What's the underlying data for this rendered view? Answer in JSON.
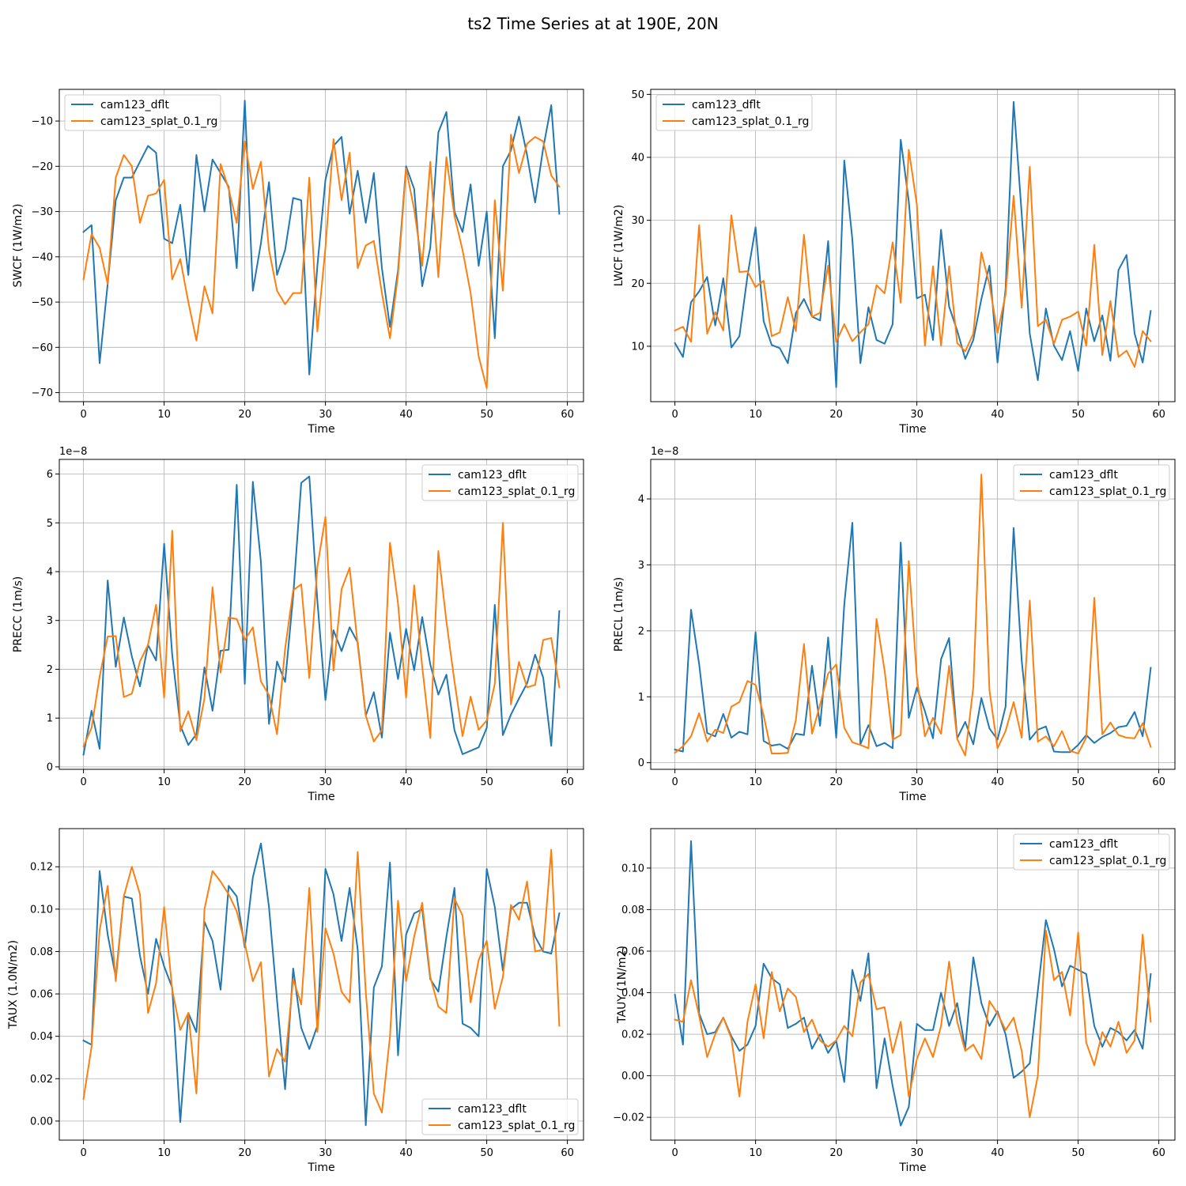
{
  "suptitle": "ts2 Time Series at at 190E, 20N",
  "colors": {
    "dflt": "#1f77b4",
    "splat": "#ff7f0e",
    "grid": "#b0b0b0"
  },
  "chart_data": [
    {
      "type": "line",
      "ylabel": "SWCF (1W/m2)",
      "xlabel": "Time",
      "xlim": [
        -3,
        62
      ],
      "ylim": [
        -72,
        -3
      ],
      "xticks": [
        0,
        10,
        20,
        30,
        40,
        50,
        60
      ],
      "yticks": [
        -70,
        -60,
        -50,
        -40,
        -30,
        -20,
        -10
      ],
      "ytick_labels": [
        "−70",
        "−60",
        "−50",
        "−40",
        "−30",
        "−20",
        "−10"
      ],
      "offset": "",
      "legend_loc": "upper-left",
      "series": [
        {
          "name": "cam123_dflt",
          "color_key": "dflt",
          "values": [
            -34.5,
            -33,
            -63.5,
            -46,
            -27.5,
            -22.5,
            -22.5,
            -19,
            -15.5,
            -17,
            -36,
            -37,
            -28.5,
            -44,
            -17.5,
            -30,
            -18.5,
            -21.5,
            -24.5,
            -42.5,
            -5.5,
            -47.5,
            -37,
            -23.5,
            -44,
            -38.5,
            -27,
            -27.5,
            -66,
            -42,
            -23,
            -15.5,
            -13.5,
            -30.5,
            -21,
            -32.5,
            -21.5,
            -42.5,
            -55.5,
            -43,
            -20,
            -25,
            -46.5,
            -38,
            -12.5,
            -8,
            -30,
            -34.5,
            -24,
            -42,
            -30,
            -58,
            -20,
            -16.5,
            -9,
            -17.5,
            -28,
            -16,
            -6.5,
            -30.5
          ]
        },
        {
          "name": "cam123_splat_0.1_rg",
          "color_key": "splat",
          "values": [
            -45,
            -35,
            -38,
            -46,
            -22.5,
            -17.5,
            -20,
            -32.5,
            -26.5,
            -26,
            -23,
            -45,
            -40.5,
            -50,
            -58.5,
            -46.5,
            -52.5,
            -19.5,
            -25,
            -32.5,
            -14.5,
            -25,
            -19,
            -38.5,
            -47.5,
            -50.5,
            -48,
            -48,
            -22.5,
            -56.5,
            -38,
            -14,
            -27.5,
            -17,
            -42.5,
            -37.5,
            -36.5,
            -48,
            -58,
            -44,
            -20.5,
            -29.5,
            -42,
            -19,
            -44.5,
            -18,
            -31,
            -38.5,
            -48,
            -62,
            -69,
            -27.5,
            -47.5,
            -13,
            -21.5,
            -15,
            -13.5,
            -14.5,
            -22,
            -24.5
          ]
        }
      ]
    },
    {
      "type": "line",
      "ylabel": "LWCF (1W/m2)",
      "xlabel": "Time",
      "xlim": [
        -3,
        62
      ],
      "ylim": [
        1.2,
        50.8
      ],
      "xticks": [
        0,
        10,
        20,
        30,
        40,
        50,
        60
      ],
      "yticks": [
        10,
        20,
        30,
        40,
        50
      ],
      "ytick_labels": [
        "10",
        "20",
        "30",
        "40",
        "50"
      ],
      "offset": "",
      "legend_loc": "upper-left",
      "series": [
        {
          "name": "cam123_dflt",
          "color_key": "dflt",
          "values": [
            10.5,
            8.3,
            17,
            18.7,
            21,
            13.3,
            20.8,
            9.8,
            11.6,
            21.2,
            28.9,
            14,
            10.2,
            9.7,
            7.3,
            15.3,
            17.5,
            14.7,
            14.1,
            26.7,
            3.5,
            39.5,
            27,
            7.3,
            16.2,
            11,
            10.4,
            13.5,
            42.8,
            33,
            17.6,
            18.2,
            11,
            28.5,
            16.3,
            12.5,
            8,
            11,
            17.5,
            22.8,
            7.4,
            19.1,
            48.8,
            31,
            12,
            4.6,
            16,
            10.1,
            7.8,
            12.4,
            6.1,
            16,
            10.8,
            14.9,
            7.7,
            22.1,
            24.5,
            12,
            7.4,
            15.6
          ]
        },
        {
          "name": "cam123_splat_0.1_rg",
          "color_key": "splat",
          "values": [
            12.5,
            13.1,
            10.7,
            29.2,
            12,
            15.4,
            12.5,
            30.8,
            21.8,
            21.9,
            19.4,
            20.4,
            11.6,
            12.2,
            17.8,
            12.4,
            27.7,
            14.7,
            15.3,
            22.8,
            10.7,
            13.5,
            10.8,
            12.2,
            13.5,
            19.7,
            18.4,
            26.5,
            16.9,
            41.2,
            32.5,
            10.1,
            22.7,
            10.1,
            22.7,
            10.5,
            9.2,
            12,
            24.9,
            19.8,
            12.1,
            18.2,
            33.9,
            16.1,
            38.5,
            13.2,
            14.2,
            10.4,
            14.2,
            14.7,
            15.5,
            10.1,
            26.1,
            8.6,
            17.2,
            8.3,
            9.3,
            6.7,
            12.4,
            10.8
          ]
        }
      ]
    },
    {
      "type": "line",
      "ylabel": "PRECC (1m/s)",
      "xlabel": "Time",
      "xlim": [
        -3,
        62
      ],
      "ylim": [
        -0.05,
        6.3
      ],
      "xticks": [
        0,
        10,
        20,
        30,
        40,
        50,
        60
      ],
      "yticks": [
        0,
        1,
        2,
        3,
        4,
        5,
        6
      ],
      "ytick_labels": [
        "0",
        "1",
        "2",
        "3",
        "4",
        "5",
        "6"
      ],
      "offset": "1e−8",
      "legend_loc": "upper-right",
      "series": [
        {
          "name": "cam123_dflt",
          "color_key": "dflt",
          "values": [
            0.25,
            1.15,
            0.37,
            3.82,
            2.05,
            3.06,
            2.26,
            1.65,
            2.5,
            2.18,
            4.57,
            2.3,
            0.85,
            0.45,
            0.67,
            2.04,
            1.15,
            2.38,
            2.4,
            5.78,
            1.7,
            5.84,
            4.2,
            0.88,
            2.16,
            1.74,
            3.5,
            5.82,
            5.95,
            3.4,
            1.37,
            2.8,
            2.37,
            2.86,
            2.55,
            1.05,
            1.53,
            0.6,
            2.75,
            1.8,
            2.83,
            1.98,
            3.07,
            2.1,
            1.48,
            1.89,
            0.75,
            0.26,
            0.33,
            0.4,
            0.8,
            3.32,
            0.65,
            1.07,
            1.4,
            1.71,
            2.3,
            1.83,
            0.43,
            3.19
          ]
        },
        {
          "name": "cam123_splat_0.1_rg",
          "color_key": "splat",
          "values": [
            0.42,
            0.8,
            1.85,
            2.67,
            2.68,
            1.43,
            1.5,
            2.16,
            2.5,
            3.32,
            1.42,
            4.84,
            0.73,
            1.14,
            0.55,
            1.4,
            3.68,
            1.93,
            3.06,
            3.03,
            2.6,
            2.86,
            1.75,
            1.47,
            0.67,
            2.42,
            3.62,
            3.74,
            1.82,
            4.1,
            5.12,
            1.97,
            3.64,
            4.08,
            2.5,
            1.05,
            0.52,
            0.75,
            4.59,
            3.35,
            1.42,
            3.72,
            2.05,
            0.59,
            4.42,
            2.98,
            1.75,
            0.63,
            1.44,
            0.76,
            0.95,
            1.7,
            5,
            1.28,
            2.15,
            1.63,
            1.68,
            2.6,
            2.64,
            1.63
          ]
        }
      ]
    },
    {
      "type": "line",
      "ylabel": "PRECL (1m/s)",
      "xlabel": "Time",
      "xlim": [
        -3,
        62
      ],
      "ylim": [
        -0.1,
        4.6
      ],
      "xticks": [
        0,
        10,
        20,
        30,
        40,
        50,
        60
      ],
      "yticks": [
        0,
        1,
        2,
        3,
        4
      ],
      "ytick_labels": [
        "0",
        "1",
        "2",
        "3",
        "4"
      ],
      "offset": "1e−8",
      "legend_loc": "upper-right",
      "series": [
        {
          "name": "cam123_dflt",
          "color_key": "dflt",
          "values": [
            0.2,
            0.17,
            2.32,
            1.5,
            0.45,
            0.4,
            0.74,
            0.38,
            0.47,
            0.43,
            1.98,
            0.33,
            0.26,
            0.28,
            0.21,
            0.44,
            0.42,
            1.47,
            0.56,
            1.9,
            0.38,
            2.4,
            3.64,
            0.28,
            0.57,
            0.25,
            0.3,
            0.22,
            3.34,
            0.68,
            1.14,
            0.78,
            0.37,
            1.57,
            1.89,
            0.37,
            0.62,
            0.28,
            0.98,
            0.52,
            0.35,
            0.85,
            3.56,
            1.55,
            0.35,
            0.5,
            0.55,
            0.17,
            0.16,
            0.16,
            0.27,
            0.42,
            0.3,
            0.39,
            0.45,
            0.54,
            0.56,
            0.77,
            0.4,
            1.44
          ]
        },
        {
          "name": "cam123_splat_0.1_rg",
          "color_key": "splat",
          "values": [
            0.15,
            0.25,
            0.4,
            0.75,
            0.32,
            0.5,
            0.45,
            0.85,
            0.92,
            1.24,
            1.18,
            0.72,
            0.14,
            0.14,
            0.15,
            0.65,
            1.8,
            0.44,
            0.88,
            1.35,
            1.49,
            0.53,
            0.31,
            0.27,
            0.22,
            2.18,
            1.4,
            0.35,
            0.42,
            3.06,
            1.3,
            0.4,
            0.68,
            0.44,
            1.47,
            0.36,
            0.11,
            1.15,
            4.37,
            1.1,
            0.22,
            0.48,
            0.92,
            0.38,
            2.46,
            0.32,
            0.4,
            0.25,
            0.48,
            0.18,
            0.14,
            0.38,
            2.5,
            0.43,
            0.61,
            0.42,
            0.38,
            0.37,
            0.6,
            0.24
          ]
        }
      ]
    },
    {
      "type": "line",
      "ylabel": "TAUX (1.0N/m2)",
      "xlabel": "Time",
      "xlim": [
        -3,
        62
      ],
      "ylim": [
        -0.009,
        0.138
      ],
      "xticks": [
        0,
        10,
        20,
        30,
        40,
        50,
        60
      ],
      "yticks": [
        0,
        0.02,
        0.04,
        0.06,
        0.08,
        0.1,
        0.12
      ],
      "ytick_labels": [
        "0.00",
        "0.02",
        "0.04",
        "0.06",
        "0.08",
        "0.10",
        "0.12"
      ],
      "offset": "",
      "legend_loc": "lower-right",
      "series": [
        {
          "name": "cam123_dflt",
          "color_key": "dflt",
          "values": [
            0.038,
            0.036,
            0.118,
            0.088,
            0.068,
            0.106,
            0.105,
            0.078,
            0.06,
            0.086,
            0.073,
            0.063,
            -0.0005,
            0.051,
            0.042,
            0.094,
            0.085,
            0.062,
            0.111,
            0.106,
            0.082,
            0.115,
            0.131,
            0.101,
            0.057,
            0.015,
            0.072,
            0.044,
            0.034,
            0.045,
            0.119,
            0.107,
            0.085,
            0.11,
            0.081,
            -0.002,
            0.063,
            0.073,
            0.122,
            0.031,
            0.088,
            0.098,
            0.1,
            0.067,
            0.061,
            0.087,
            0.11,
            0.046,
            0.044,
            0.04,
            0.119,
            0.101,
            0.071,
            0.1,
            0.103,
            0.103,
            0.087,
            0.08,
            0.079,
            0.098
          ]
        },
        {
          "name": "cam123_splat_0.1_rg",
          "color_key": "splat",
          "values": [
            0.0105,
            0.035,
            0.09,
            0.111,
            0.066,
            0.106,
            0.12,
            0.107,
            0.051,
            0.065,
            0.101,
            0.062,
            0.043,
            0.051,
            0.013,
            0.1,
            0.118,
            0.113,
            0.107,
            0.099,
            0.084,
            0.066,
            0.075,
            0.021,
            0.034,
            0.028,
            0.067,
            0.055,
            0.11,
            0.042,
            0.091,
            0.079,
            0.061,
            0.056,
            0.127,
            0.061,
            0.013,
            0.004,
            0.04,
            0.104,
            0.066,
            0.087,
            0.103,
            0.068,
            0.054,
            0.051,
            0.105,
            0.097,
            0.056,
            0.076,
            0.085,
            0.053,
            0.068,
            0.102,
            0.095,
            0.113,
            0.08,
            0.081,
            0.128,
            0.045
          ]
        }
      ]
    },
    {
      "type": "line",
      "ylabel": "TAUY (1N/m2)",
      "xlabel": "Time",
      "xlim": [
        -3,
        62
      ],
      "ylim": [
        -0.031,
        0.119
      ],
      "xticks": [
        0,
        10,
        20,
        30,
        40,
        50,
        60
      ],
      "yticks": [
        -0.02,
        0,
        0.02,
        0.04,
        0.06,
        0.08,
        0.1
      ],
      "ytick_labels": [
        "−0.02",
        "0.00",
        "0.02",
        "0.04",
        "0.06",
        "0.08",
        "0.10"
      ],
      "offset": "",
      "legend_loc": "upper-right",
      "series": [
        {
          "name": "cam123_dflt",
          "color_key": "dflt",
          "values": [
            0.039,
            0.015,
            0.113,
            0.03,
            0.02,
            0.021,
            0.028,
            0.019,
            0.012,
            0.015,
            0.024,
            0.054,
            0.047,
            0.044,
            0.023,
            0.025,
            0.028,
            0.013,
            0.02,
            0.011,
            0.017,
            -0.003,
            0.051,
            0.036,
            0.059,
            -0.006,
            0.018,
            -0.005,
            -0.024,
            -0.015,
            0.025,
            0.022,
            0.022,
            0.04,
            0.024,
            0.035,
            0.013,
            0.057,
            0.035,
            0.024,
            0.031,
            0.02,
            -0.001,
            0.002,
            0.006,
            0.041,
            0.075,
            0.061,
            0.043,
            0.053,
            0.051,
            0.049,
            0.024,
            0.014,
            0.023,
            0.021,
            0.017,
            0.022,
            0.013,
            0.049
          ]
        },
        {
          "name": "cam123_splat_0.1_rg",
          "color_key": "splat",
          "values": [
            0.027,
            0.026,
            0.046,
            0.029,
            0.009,
            0.02,
            0.028,
            0.018,
            -0.01,
            0.026,
            0.044,
            0.018,
            0.05,
            0.031,
            0.042,
            0.038,
            0.021,
            0.027,
            0.017,
            0.014,
            0.017,
            0.024,
            0.019,
            0.045,
            0.049,
            0.032,
            0.033,
            0.011,
            0.026,
            -0.01,
            0.008,
            0.018,
            0.009,
            0.024,
            0.055,
            0.026,
            0.012,
            0.015,
            0.008,
            0.036,
            0.03,
            0.022,
            0.028,
            0.012,
            -0.02,
            0,
            0.07,
            0.046,
            0.05,
            0.029,
            0.069,
            0.016,
            0.005,
            0.021,
            0.014,
            0.026,
            0.011,
            0.017,
            0.068,
            0.026
          ]
        }
      ]
    }
  ]
}
